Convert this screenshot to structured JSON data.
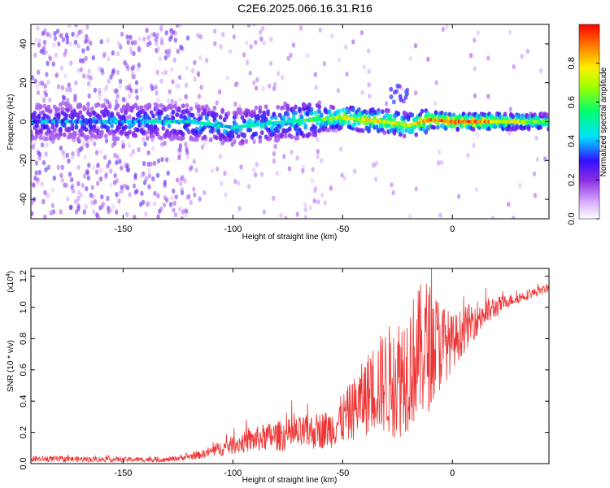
{
  "title": "C2E6.2025.066.16.31.R16",
  "chart_data": [
    {
      "type": "heatmap",
      "xlabel": "Height of straight line (km)",
      "ylabel": "Frequency (Hz)",
      "xlim": [
        -192,
        44
      ],
      "ylim": [
        -50,
        50
      ],
      "xticks": [
        -150,
        -100,
        -50,
        0
      ],
      "yticks": [
        -40,
        -20,
        0,
        20,
        40
      ],
      "colorbar": {
        "label": "Normalized spectral amplitude",
        "range": [
          0.0,
          1.0
        ],
        "ticks": [
          "0.0",
          "0.2",
          "0.4",
          "0.6",
          "0.8"
        ]
      },
      "ridge": [
        {
          "x": -190,
          "f": 0,
          "amp": 0.35
        },
        {
          "x": -150,
          "f": 0,
          "amp": 0.4
        },
        {
          "x": -120,
          "f": 0,
          "amp": 0.45
        },
        {
          "x": -100,
          "f": -3,
          "amp": 0.45
        },
        {
          "x": -75,
          "f": 0,
          "amp": 0.5
        },
        {
          "x": -50,
          "f": 2,
          "amp": 0.7
        },
        {
          "x": -30,
          "f": 0,
          "amp": 0.75
        },
        {
          "x": -20,
          "f": -2,
          "amp": 0.7
        },
        {
          "x": -10,
          "f": 1,
          "amp": 0.85
        },
        {
          "x": 0,
          "f": 0,
          "amp": 0.95
        },
        {
          "x": 10,
          "f": 0,
          "amp": 0.9
        },
        {
          "x": 44,
          "f": 0,
          "amp": 0.6
        }
      ]
    },
    {
      "type": "line",
      "xlabel": "Height of straight line (km)",
      "ylabel": "SNR (10 * v/v)",
      "multiplier_label": "(x10",
      "multiplier_exp": "4",
      "xlim": [
        -192,
        44
      ],
      "ylim": [
        0,
        1.25
      ],
      "xticks": [
        -150,
        -100,
        -50,
        0
      ],
      "yticks": [
        "0.0",
        "0.2",
        "0.4",
        "0.6",
        "0.8",
        "1.0",
        "1.2"
      ],
      "color": "#ee3333",
      "envelope": [
        {
          "x": -192,
          "base": 0.01,
          "amp": 0.04
        },
        {
          "x": -130,
          "base": 0.01,
          "amp": 0.03
        },
        {
          "x": -115,
          "base": 0.03,
          "amp": 0.05
        },
        {
          "x": -100,
          "base": 0.06,
          "amp": 0.12
        },
        {
          "x": -85,
          "base": 0.08,
          "amp": 0.18
        },
        {
          "x": -70,
          "base": 0.08,
          "amp": 0.22
        },
        {
          "x": -55,
          "base": 0.1,
          "amp": 0.25
        },
        {
          "x": -45,
          "base": 0.15,
          "amp": 0.4
        },
        {
          "x": -35,
          "base": 0.2,
          "amp": 0.6
        },
        {
          "x": -25,
          "base": 0.15,
          "amp": 0.8
        },
        {
          "x": -12,
          "base": 0.3,
          "amp": 0.9
        },
        {
          "x": 0,
          "base": 0.6,
          "amp": 0.35
        },
        {
          "x": 10,
          "base": 0.8,
          "amp": 0.25
        },
        {
          "x": 25,
          "base": 1.0,
          "amp": 0.08
        },
        {
          "x": 44,
          "base": 1.1,
          "amp": 0.05
        }
      ]
    }
  ]
}
